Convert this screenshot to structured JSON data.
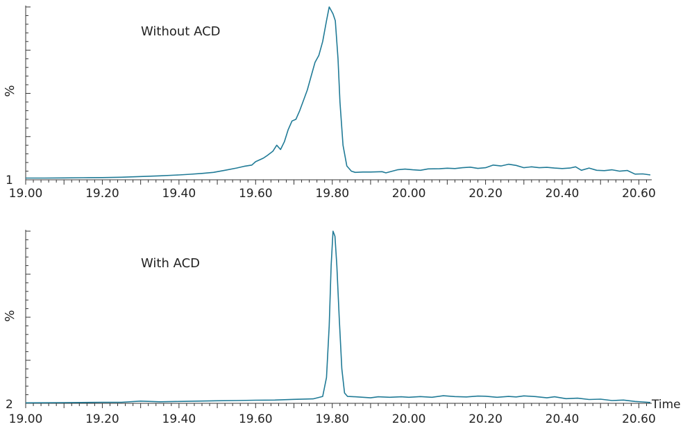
{
  "chart_data": [
    {
      "type": "line",
      "id": "top",
      "annotation": "Without ACD",
      "ylabel": "%",
      "trace_label": "1",
      "xlim": [
        19.0,
        20.63
      ],
      "ylim": [
        0,
        100
      ],
      "x_ticks": [
        "19.00",
        "19.20",
        "19.40",
        "19.60",
        "19.80",
        "20.00",
        "20.20",
        "20.40",
        "20.60"
      ],
      "color": "#1f7a96",
      "points": [
        [
          19.0,
          1.0
        ],
        [
          19.05,
          1.0
        ],
        [
          19.1,
          1.1
        ],
        [
          19.15,
          1.2
        ],
        [
          19.2,
          1.3
        ],
        [
          19.25,
          1.5
        ],
        [
          19.3,
          1.9
        ],
        [
          19.35,
          2.3
        ],
        [
          19.4,
          2.8
        ],
        [
          19.43,
          3.2
        ],
        [
          19.46,
          3.7
        ],
        [
          19.49,
          4.3
        ],
        [
          19.52,
          5.5
        ],
        [
          19.55,
          6.8
        ],
        [
          19.57,
          7.8
        ],
        [
          19.59,
          8.5
        ],
        [
          19.6,
          10.5
        ],
        [
          19.62,
          12.5
        ],
        [
          19.63,
          14.0
        ],
        [
          19.645,
          16.5
        ],
        [
          19.655,
          20.0
        ],
        [
          19.665,
          17.5
        ],
        [
          19.675,
          22.0
        ],
        [
          19.685,
          29.0
        ],
        [
          19.695,
          34.0
        ],
        [
          19.705,
          35.0
        ],
        [
          19.715,
          40.0
        ],
        [
          19.725,
          46.0
        ],
        [
          19.735,
          52.0
        ],
        [
          19.745,
          60.0
        ],
        [
          19.755,
          68.0
        ],
        [
          19.765,
          72.0
        ],
        [
          19.775,
          80.0
        ],
        [
          19.785,
          92.0
        ],
        [
          19.792,
          100.0
        ],
        [
          19.797,
          98.0
        ],
        [
          19.802,
          96.0
        ],
        [
          19.808,
          92.0
        ],
        [
          19.815,
          70.0
        ],
        [
          19.82,
          45.0
        ],
        [
          19.828,
          20.0
        ],
        [
          19.838,
          8.0
        ],
        [
          19.85,
          5.0
        ],
        [
          19.86,
          4.3
        ],
        [
          19.88,
          4.5
        ],
        [
          19.9,
          4.5
        ],
        [
          19.93,
          4.7
        ],
        [
          19.94,
          4.0
        ],
        [
          19.97,
          5.8
        ],
        [
          19.99,
          6.2
        ],
        [
          20.01,
          5.8
        ],
        [
          20.03,
          5.5
        ],
        [
          20.05,
          6.3
        ],
        [
          20.08,
          6.4
        ],
        [
          20.1,
          6.7
        ],
        [
          20.12,
          6.5
        ],
        [
          20.14,
          7.0
        ],
        [
          20.16,
          7.3
        ],
        [
          20.18,
          6.6
        ],
        [
          20.2,
          7.0
        ],
        [
          20.22,
          8.5
        ],
        [
          20.24,
          8.0
        ],
        [
          20.26,
          9.0
        ],
        [
          20.28,
          8.3
        ],
        [
          20.3,
          7.0
        ],
        [
          20.32,
          7.5
        ],
        [
          20.34,
          7.0
        ],
        [
          20.36,
          7.2
        ],
        [
          20.38,
          6.8
        ],
        [
          20.4,
          6.5
        ],
        [
          20.42,
          6.8
        ],
        [
          20.435,
          7.5
        ],
        [
          20.45,
          5.5
        ],
        [
          20.47,
          6.8
        ],
        [
          20.49,
          5.5
        ],
        [
          20.51,
          5.3
        ],
        [
          20.53,
          5.8
        ],
        [
          20.55,
          5.0
        ],
        [
          20.57,
          5.4
        ],
        [
          20.59,
          3.3
        ],
        [
          20.61,
          3.4
        ],
        [
          20.63,
          2.8
        ]
      ]
    },
    {
      "type": "line",
      "id": "bottom",
      "annotation": "With ACD",
      "ylabel": "%",
      "trace_label": "2",
      "xlabel": "Time",
      "xlim": [
        19.0,
        20.63
      ],
      "ylim": [
        0,
        100
      ],
      "x_ticks": [
        "19.00",
        "19.20",
        "19.40",
        "19.60",
        "19.80",
        "20.00",
        "20.20",
        "20.40",
        "20.60"
      ],
      "color": "#1f7a96",
      "points": [
        [
          19.0,
          0.3
        ],
        [
          19.1,
          0.4
        ],
        [
          19.2,
          0.6
        ],
        [
          19.25,
          0.6
        ],
        [
          19.3,
          1.3
        ],
        [
          19.35,
          0.9
        ],
        [
          19.4,
          1.1
        ],
        [
          19.45,
          1.3
        ],
        [
          19.5,
          1.5
        ],
        [
          19.55,
          1.6
        ],
        [
          19.6,
          1.8
        ],
        [
          19.65,
          1.9
        ],
        [
          19.7,
          2.3
        ],
        [
          19.75,
          2.6
        ],
        [
          19.775,
          4.0
        ],
        [
          19.785,
          15.0
        ],
        [
          19.792,
          45.0
        ],
        [
          19.797,
          80.0
        ],
        [
          19.802,
          100.0
        ],
        [
          19.807,
          97.0
        ],
        [
          19.812,
          80.0
        ],
        [
          19.818,
          50.0
        ],
        [
          19.825,
          20.0
        ],
        [
          19.832,
          6.0
        ],
        [
          19.84,
          4.0
        ],
        [
          19.86,
          3.8
        ],
        [
          19.88,
          3.5
        ],
        [
          19.9,
          3.2
        ],
        [
          19.92,
          3.8
        ],
        [
          19.95,
          3.5
        ],
        [
          19.98,
          3.8
        ],
        [
          20.0,
          3.5
        ],
        [
          20.03,
          3.9
        ],
        [
          20.06,
          3.5
        ],
        [
          20.09,
          4.4
        ],
        [
          20.12,
          3.9
        ],
        [
          20.15,
          3.7
        ],
        [
          20.18,
          4.2
        ],
        [
          20.2,
          4.1
        ],
        [
          20.23,
          3.5
        ],
        [
          20.26,
          4.0
        ],
        [
          20.28,
          3.7
        ],
        [
          20.3,
          4.3
        ],
        [
          20.33,
          3.9
        ],
        [
          20.36,
          3.2
        ],
        [
          20.38,
          3.8
        ],
        [
          20.41,
          2.7
        ],
        [
          20.44,
          3.0
        ],
        [
          20.47,
          2.2
        ],
        [
          20.5,
          2.4
        ],
        [
          20.53,
          1.6
        ],
        [
          20.56,
          1.9
        ],
        [
          20.59,
          1.1
        ],
        [
          20.61,
          0.8
        ],
        [
          20.63,
          0.5
        ]
      ]
    }
  ]
}
